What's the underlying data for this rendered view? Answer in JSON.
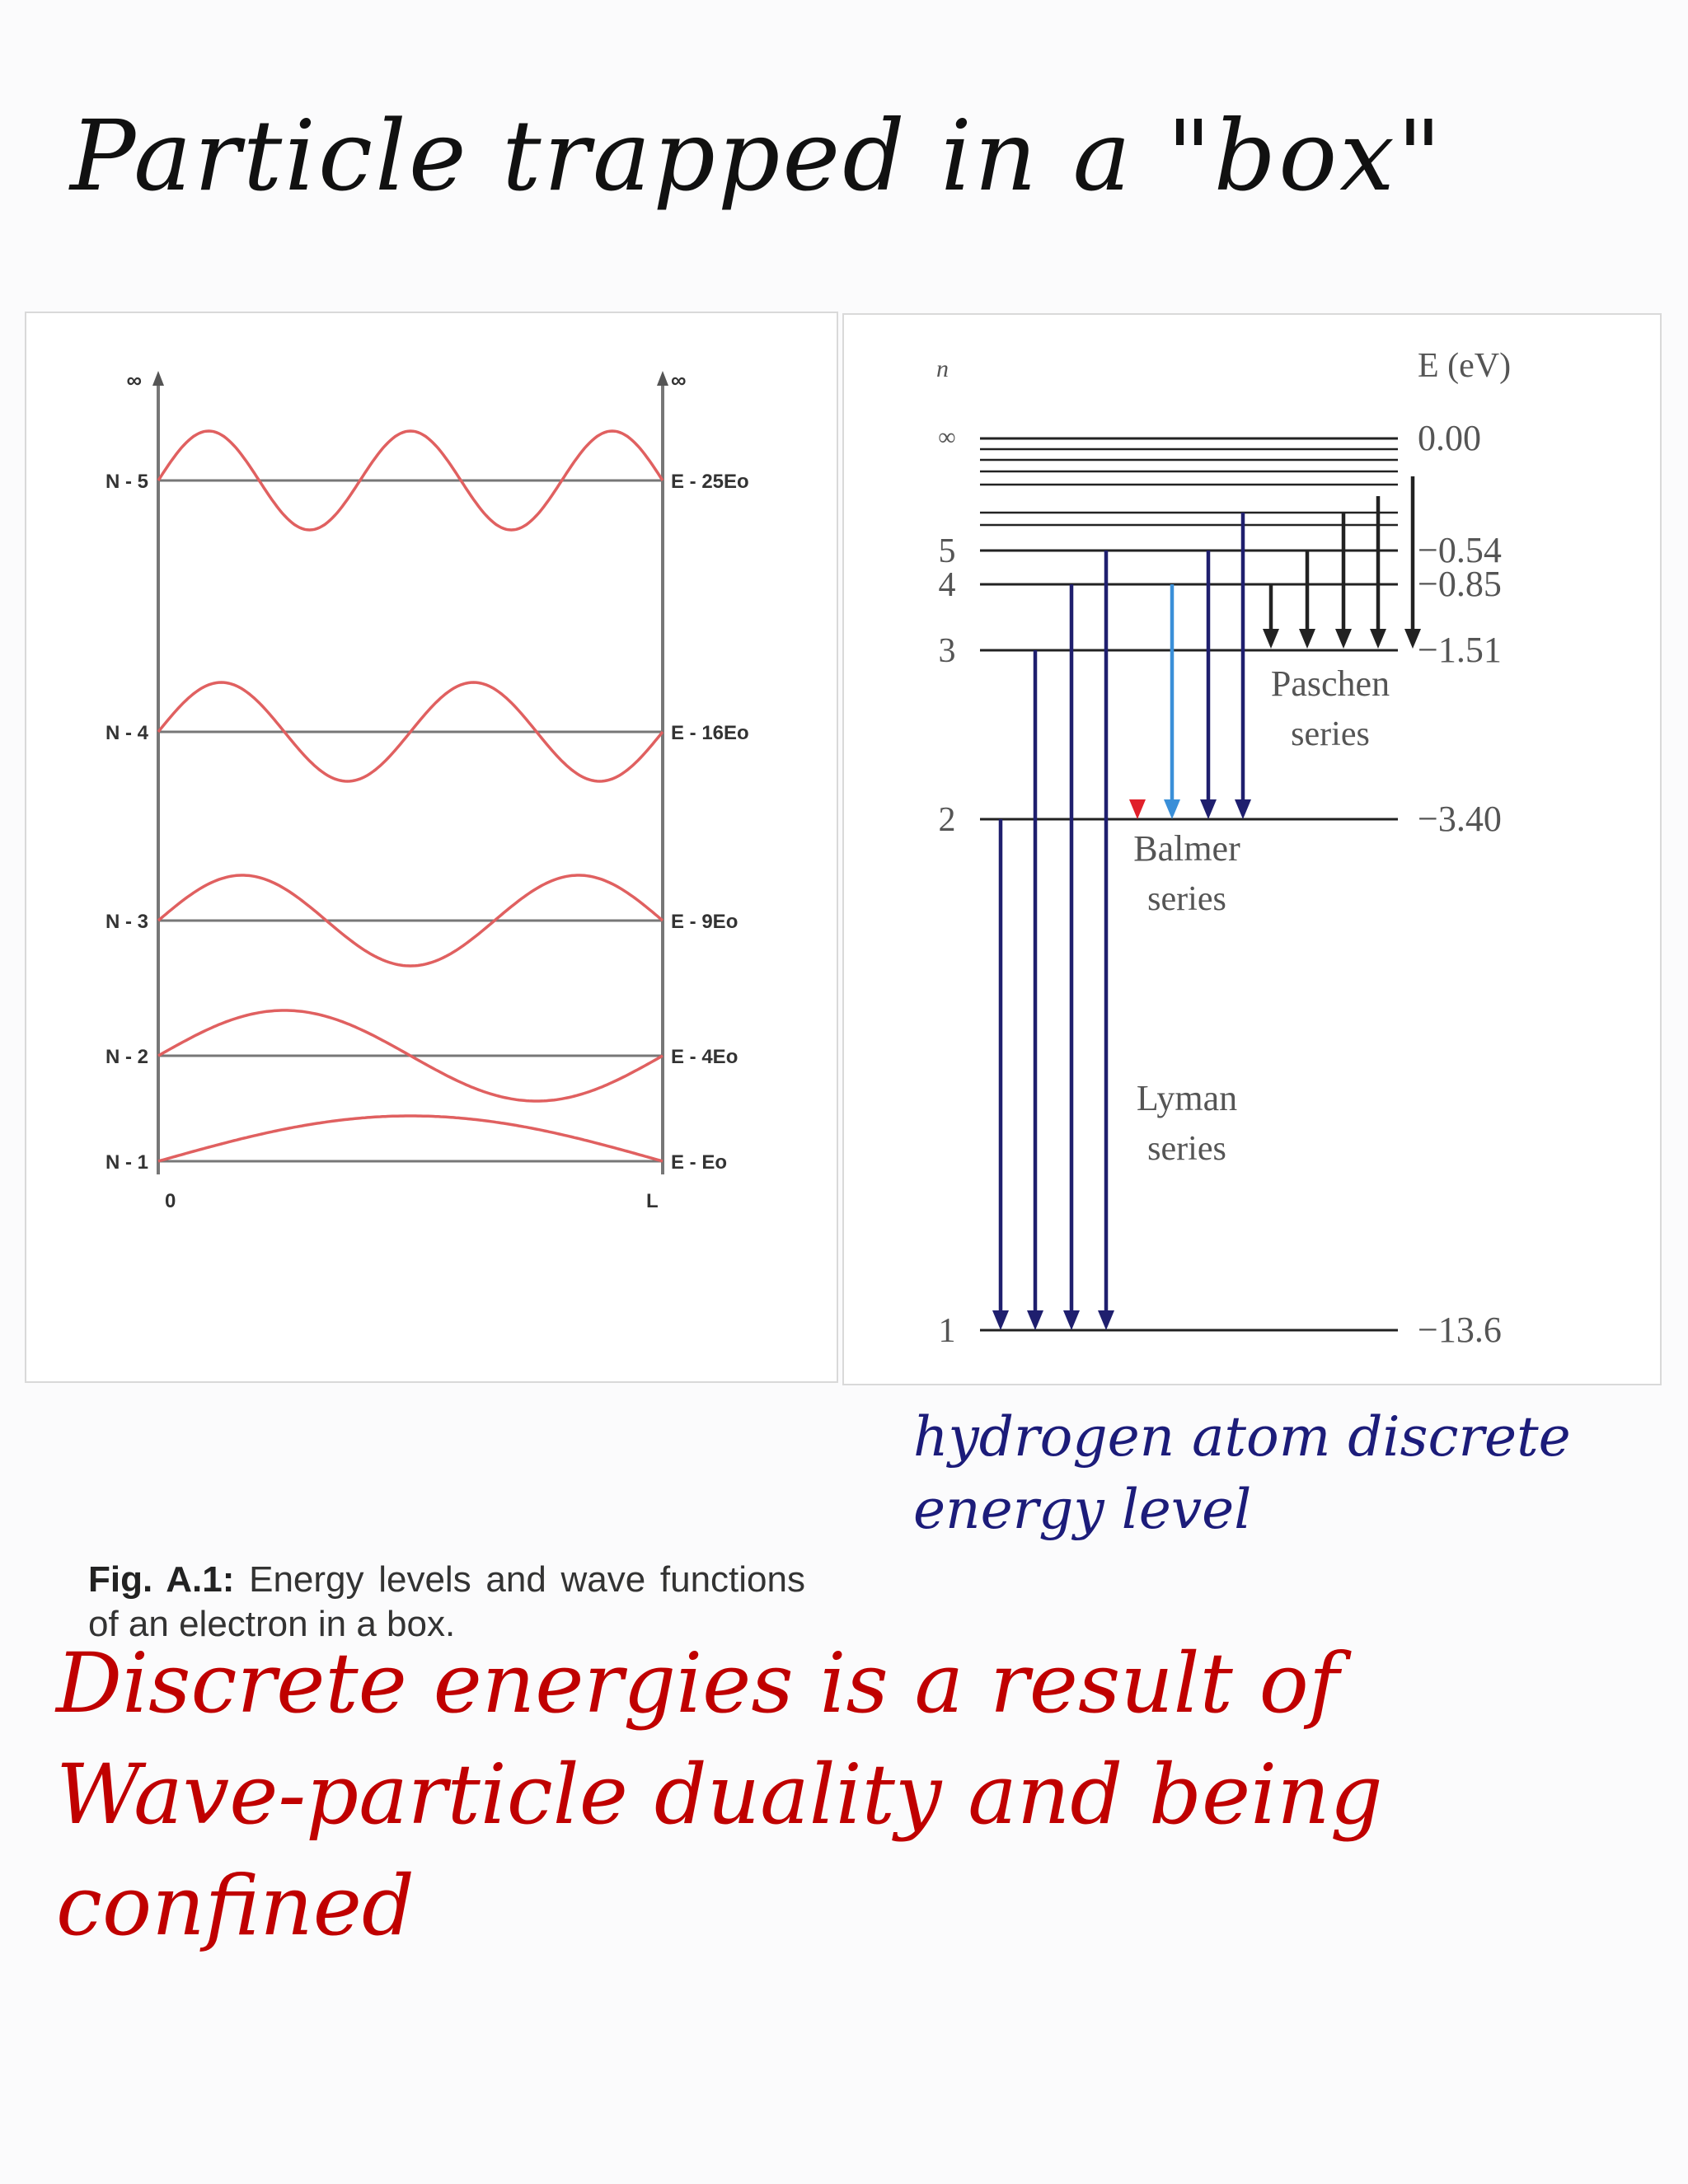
{
  "title": "Particle trapped in a \"box\"",
  "box_diagram": {
    "infinity_left": "∞",
    "infinity_right": "∞",
    "levels": [
      {
        "n_label": "N - 5",
        "e_label": "E - 25Eo",
        "n": 5
      },
      {
        "n_label": "N - 4",
        "e_label": "E - 16Eo",
        "n": 4
      },
      {
        "n_label": "N - 3",
        "e_label": "E - 9Eo",
        "n": 3
      },
      {
        "n_label": "N - 2",
        "e_label": "E - 4Eo",
        "n": 2
      },
      {
        "n_label": "N - 1",
        "e_label": "E - Eo",
        "n": 1
      }
    ],
    "x_start": "0",
    "x_end": "L",
    "caption_bold": "Fig. A.1:",
    "caption_text": "Energy levels and wave functions of an electron in a box.",
    "wave_color": "#e06060"
  },
  "hydrogen_diagram": {
    "n_axis_label": "n",
    "energy_axis_label": "E (eV)",
    "levels": [
      {
        "n": "∞",
        "energy": "0.00",
        "value": 0.0
      },
      {
        "n": "5",
        "energy": "−0.54",
        "value": -0.54
      },
      {
        "n": "4",
        "energy": "−0.85",
        "value": -0.85
      },
      {
        "n": "3",
        "energy": "−1.51",
        "value": -1.51
      },
      {
        "n": "2",
        "energy": "−3.40",
        "value": -3.4
      },
      {
        "n": "1",
        "energy": "−13.6",
        "value": -13.6
      }
    ],
    "series": [
      {
        "name_line1": "Paschen",
        "name_line2": "series",
        "to_n": 3,
        "from_n": [
          4,
          5,
          6,
          7,
          "∞"
        ]
      },
      {
        "name_line1": "Balmer",
        "name_line2": "series",
        "to_n": 2,
        "from_n": [
          3,
          4,
          5,
          6
        ]
      },
      {
        "name_line1": "Lyman",
        "name_line2": "series",
        "to_n": 1,
        "from_n": [
          2,
          3,
          4,
          5
        ]
      }
    ],
    "arrow_color": "#1f1f6e",
    "balmer_colors": [
      "#e0202a",
      "#3a8fd8",
      "#1f1f6e",
      "#1f1f6e"
    ]
  },
  "note_hydrogen": [
    "hydrogen atom discrete",
    "energy level"
  ],
  "note_discrete": [
    "Discrete energies is a result of",
    "Wave-particle duality and being",
    "confined"
  ]
}
